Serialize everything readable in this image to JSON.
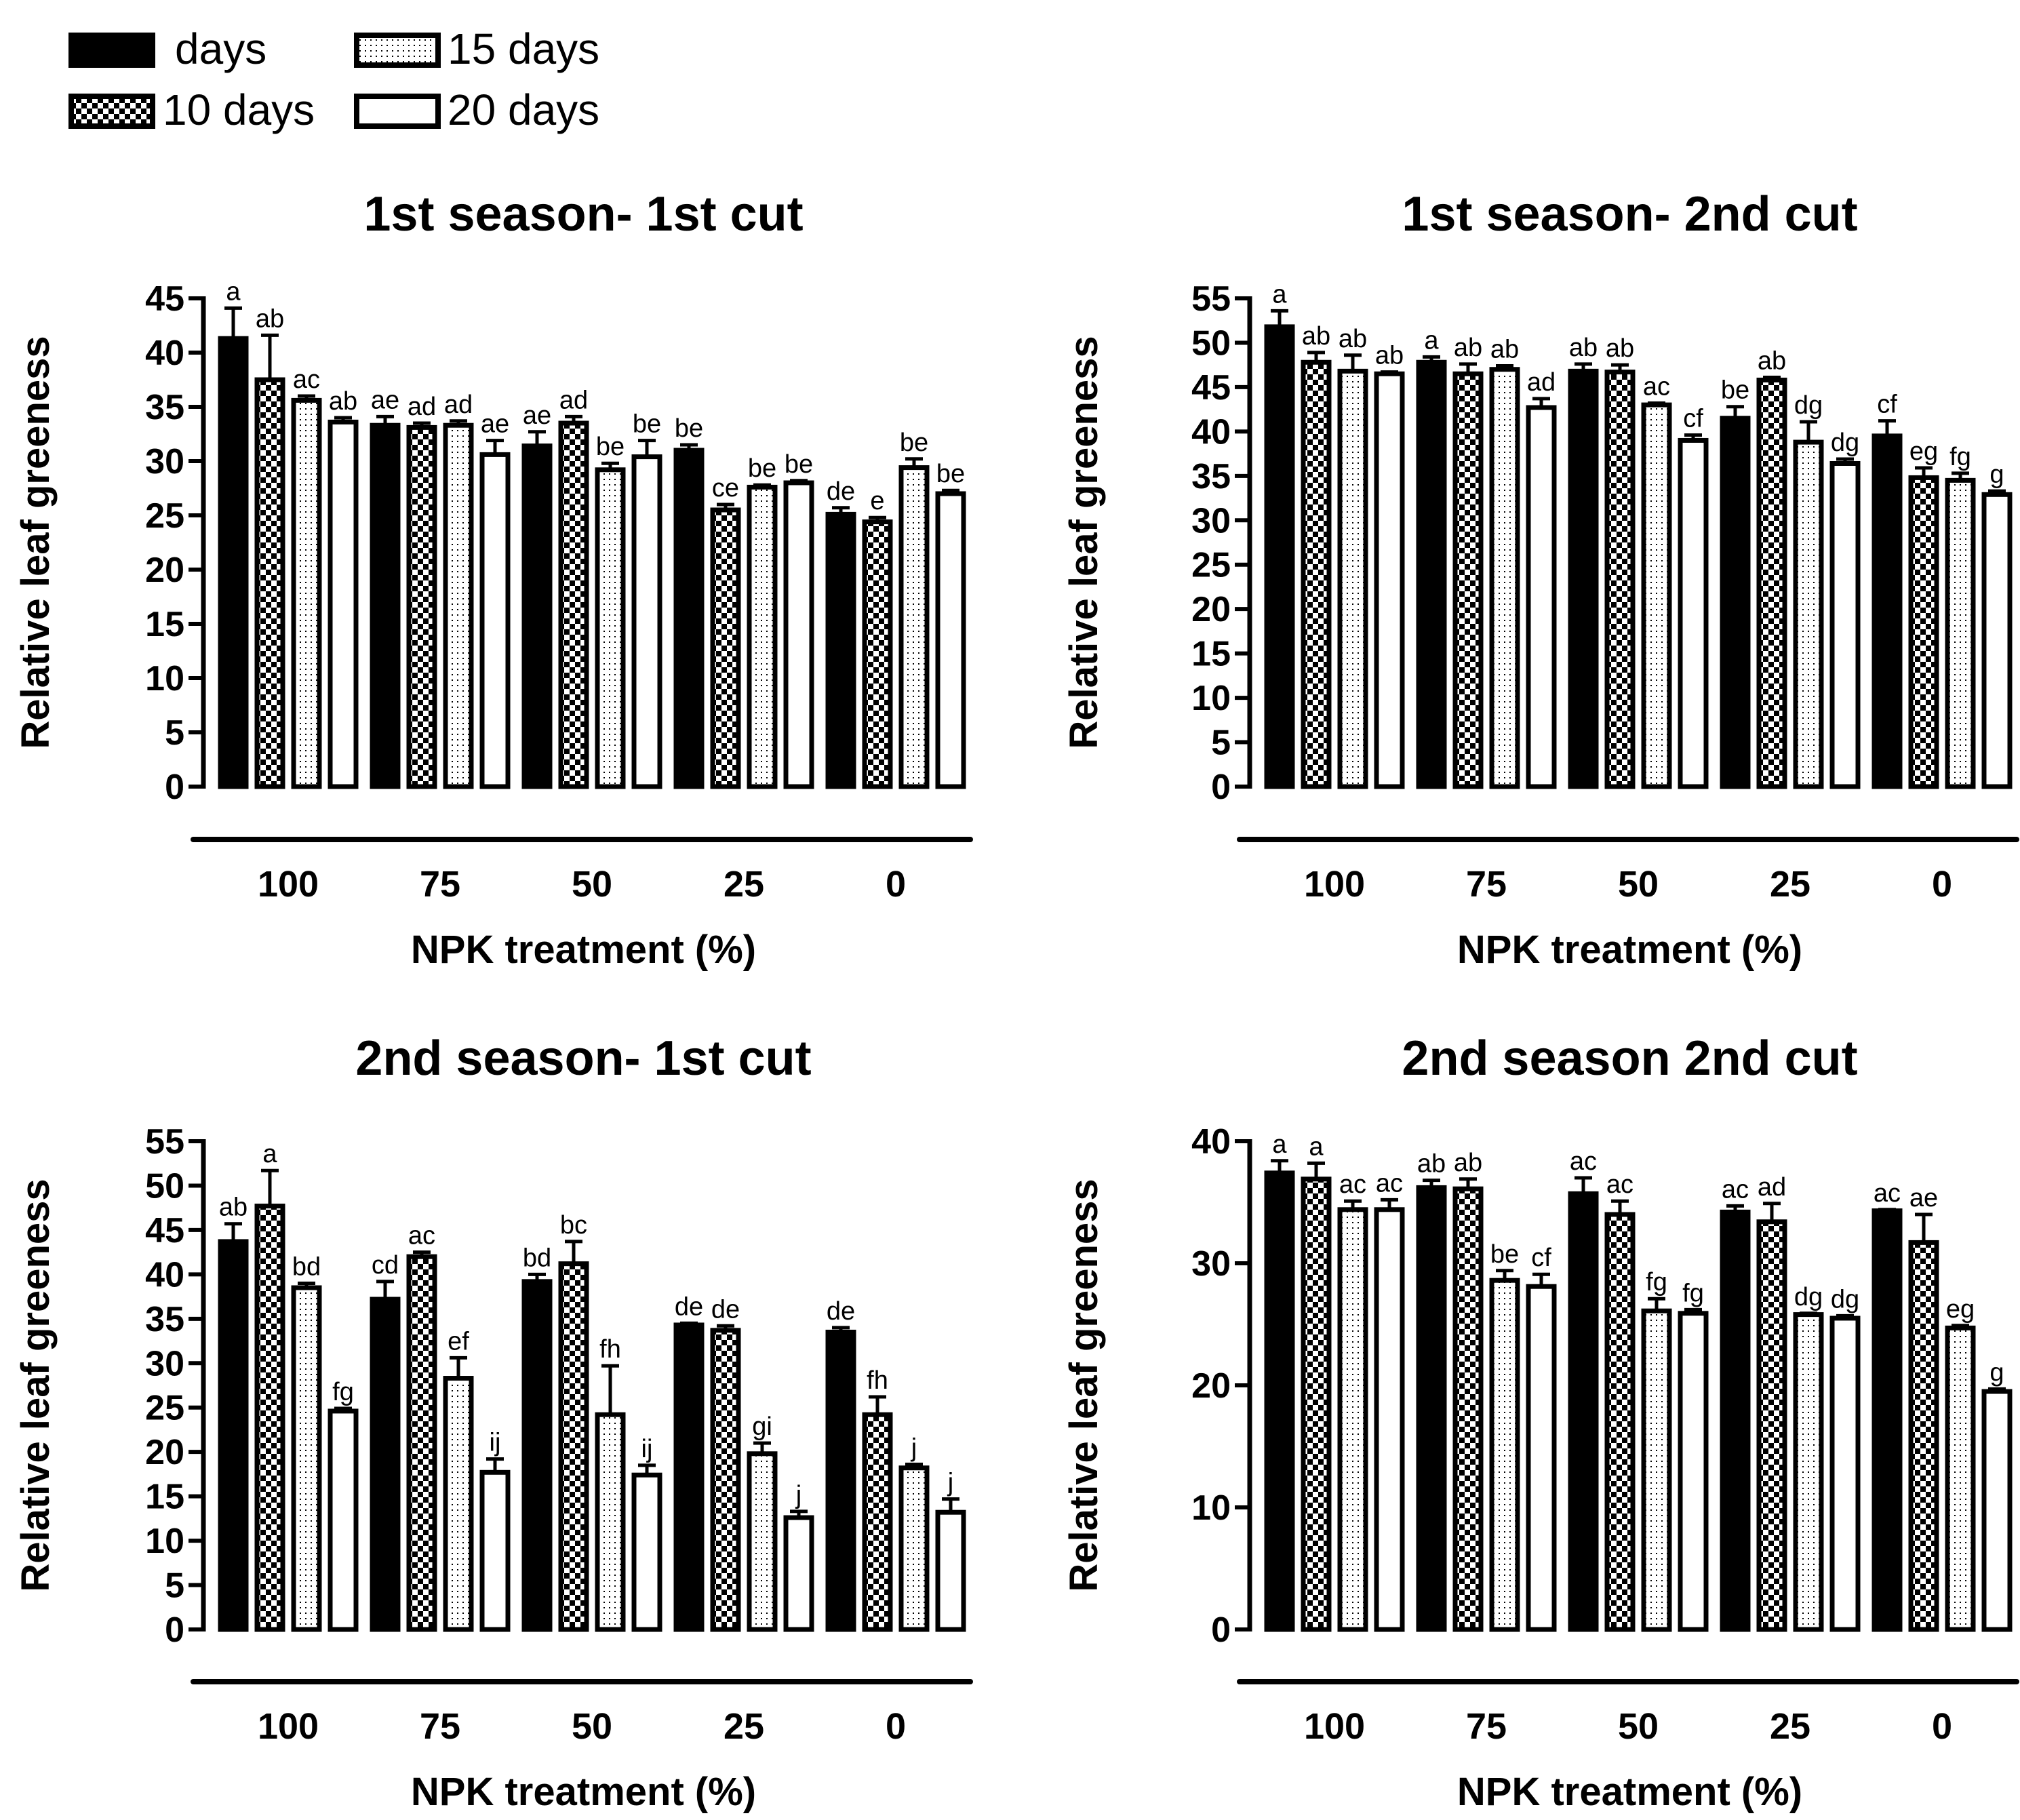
{
  "legend": [
    {
      "label": "days",
      "pattern": "solid"
    },
    {
      "label": "15 days",
      "pattern": "dots"
    },
    {
      "label": "10 days",
      "pattern": "checker"
    },
    {
      "label": "20 days",
      "pattern": "open"
    }
  ],
  "colors": {
    "ink": "#000000",
    "background": "#ffffff"
  },
  "chart_data": [
    {
      "type": "bar",
      "title": "1st season- 1st cut",
      "xlabel": "NPK treatment (%)",
      "ylabel": "Relative leaf greeness",
      "ylim": [
        0,
        45
      ],
      "yticks": [
        0,
        5,
        10,
        15,
        20,
        25,
        30,
        35,
        40,
        45
      ],
      "categories": [
        "100",
        "75",
        "50",
        "25",
        "0"
      ],
      "series": [
        {
          "name": "days",
          "values": [
            41.3,
            33.3,
            31.4,
            31.0,
            25.1
          ],
          "errors": [
            2.8,
            0.8,
            1.3,
            0.5,
            0.6
          ],
          "letters": [
            "a",
            "ae",
            "ae",
            "be",
            "de"
          ]
        },
        {
          "name": "10 days",
          "values": [
            37.5,
            33.1,
            33.5,
            25.5,
            24.4
          ],
          "errors": [
            4.1,
            0.4,
            0.6,
            0.5,
            0.4
          ],
          "letters": [
            "ab",
            "ad",
            "ad",
            "ce",
            "e"
          ]
        },
        {
          "name": "15 days",
          "values": [
            35.6,
            33.3,
            29.2,
            27.6,
            29.4
          ],
          "errors": [
            0.4,
            0.4,
            0.6,
            0.2,
            0.8
          ],
          "letters": [
            "ac",
            "ad",
            "be",
            "be",
            "be"
          ]
        },
        {
          "name": "20 days",
          "values": [
            33.6,
            30.6,
            30.4,
            28.0,
            27.0
          ],
          "errors": [
            0.4,
            1.3,
            1.5,
            0.2,
            0.3
          ],
          "letters": [
            "ab",
            "ae",
            "be",
            "be",
            "be"
          ]
        }
      ]
    },
    {
      "type": "bar",
      "title": "1st season- 2nd cut",
      "xlabel": "NPK treatment (%)",
      "ylabel": "Relative leaf greeness",
      "ylim": [
        0,
        55
      ],
      "yticks": [
        0,
        5,
        10,
        15,
        20,
        25,
        30,
        35,
        40,
        45,
        50,
        55
      ],
      "categories": [
        "100",
        "75",
        "50",
        "25",
        "0"
      ],
      "series": [
        {
          "name": "days",
          "values": [
            51.8,
            47.8,
            46.8,
            41.5,
            39.5
          ],
          "errors": [
            1.8,
            0.6,
            0.8,
            1.3,
            1.7
          ],
          "letters": [
            "a",
            "a",
            "ab",
            "be",
            "cf"
          ]
        },
        {
          "name": "10 days",
          "values": [
            47.8,
            46.5,
            46.7,
            45.8,
            34.8
          ],
          "errors": [
            1.1,
            1.1,
            0.8,
            0.3,
            1.1
          ],
          "letters": [
            "ab",
            "ab",
            "ab",
            "ab",
            "eg"
          ]
        },
        {
          "name": "15 days",
          "values": [
            46.8,
            47.0,
            43.0,
            38.8,
            34.5
          ],
          "errors": [
            1.8,
            0.4,
            0.2,
            2.3,
            0.8
          ],
          "letters": [
            "ab",
            "ab",
            "ac",
            "dg",
            "fg"
          ]
        },
        {
          "name": "20 days",
          "values": [
            46.5,
            42.7,
            39.0,
            36.4,
            32.9
          ],
          "errors": [
            0.2,
            1.0,
            0.6,
            0.5,
            0.4
          ],
          "letters": [
            "ab",
            "ad",
            "cf",
            "dg",
            "g"
          ]
        }
      ]
    },
    {
      "type": "bar",
      "title": "2nd season- 1st cut",
      "xlabel": "NPK treatment (%)",
      "ylabel": "Relative leaf greeness",
      "ylim": [
        0,
        55
      ],
      "yticks": [
        0,
        5,
        10,
        15,
        20,
        25,
        30,
        35,
        40,
        45,
        50,
        55
      ],
      "categories": [
        "100",
        "75",
        "50",
        "25",
        "0"
      ],
      "series": [
        {
          "name": "days",
          "values": [
            43.7,
            37.2,
            39.2,
            34.3,
            33.5
          ],
          "errors": [
            2.0,
            2.0,
            0.8,
            0.2,
            0.5
          ],
          "letters": [
            "ab",
            "cd",
            "bd",
            "de",
            "de"
          ]
        },
        {
          "name": "10 days",
          "values": [
            47.7,
            42.0,
            41.2,
            33.7,
            24.2
          ],
          "errors": [
            4.0,
            0.5,
            2.5,
            0.5,
            2.0
          ],
          "letters": [
            "a",
            "ac",
            "bc",
            "de",
            "fh"
          ]
        },
        {
          "name": "15 days",
          "values": [
            38.5,
            28.3,
            24.2,
            19.8,
            18.2
          ],
          "errors": [
            0.5,
            2.3,
            5.5,
            1.2,
            0.4
          ],
          "letters": [
            "bd",
            "ef",
            "fh",
            "gi",
            "j"
          ]
        },
        {
          "name": "20 days",
          "values": [
            24.6,
            17.7,
            17.4,
            12.6,
            13.2
          ],
          "errors": [
            0.3,
            1.5,
            1.1,
            0.7,
            1.5
          ],
          "letters": [
            "fg",
            "ij",
            "ij",
            "j",
            "j"
          ]
        }
      ]
    },
    {
      "type": "bar",
      "title": "2nd season 2nd cut",
      "xlabel": "NPK treatment (%)",
      "ylabel": "Relative leaf greeness",
      "ylim": [
        0,
        40
      ],
      "yticks": [
        0,
        10,
        20,
        30,
        40
      ],
      "categories": [
        "100",
        "75",
        "50",
        "25",
        "0"
      ],
      "series": [
        {
          "name": "days",
          "values": [
            37.4,
            36.2,
            35.7,
            34.2,
            34.3
          ],
          "errors": [
            1.0,
            0.6,
            1.3,
            0.5,
            0.1
          ],
          "letters": [
            "a",
            "ab",
            "ac",
            "ac",
            "ac"
          ]
        },
        {
          "name": "10 days",
          "values": [
            36.9,
            36.1,
            34.0,
            33.4,
            31.7
          ],
          "errors": [
            1.3,
            0.8,
            1.1,
            1.5,
            2.3
          ],
          "letters": [
            "a",
            "ab",
            "ac",
            "ad",
            "ae"
          ]
        },
        {
          "name": "15 days",
          "values": [
            34.4,
            28.6,
            26.1,
            25.8,
            24.7
          ],
          "errors": [
            0.7,
            0.8,
            1.0,
            0.1,
            0.2
          ],
          "letters": [
            "ac",
            "be",
            "fg",
            "dg",
            "eg"
          ]
        },
        {
          "name": "20 days",
          "values": [
            34.4,
            28.1,
            25.9,
            25.5,
            19.5
          ],
          "errors": [
            0.8,
            1.0,
            0.3,
            0.2,
            0.2
          ],
          "letters": [
            "ac",
            "cf",
            "fg",
            "dg",
            "g"
          ]
        }
      ]
    }
  ]
}
